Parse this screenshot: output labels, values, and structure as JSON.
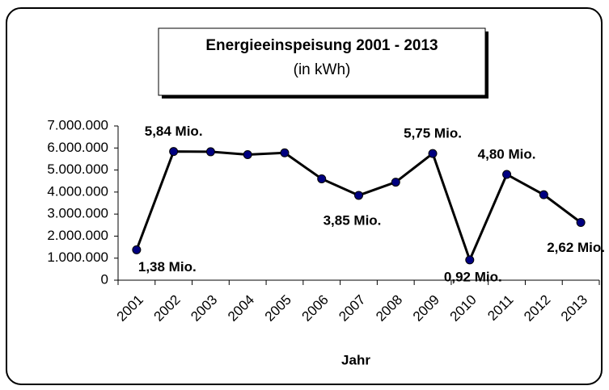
{
  "chart_data": {
    "type": "line",
    "title": "Energieeinspeisung 2001 - 2013",
    "subtitle": "(in kWh)",
    "x_label": "Jahr",
    "categories": [
      "2001",
      "2002",
      "2003",
      "2004",
      "2005",
      "2006",
      "2007",
      "2008",
      "2009",
      "2010",
      "2011",
      "2012",
      "2013"
    ],
    "series": [
      {
        "name": "Energieeinspeisung",
        "color": "#000080",
        "line_color": "#000000",
        "values": [
          1380000,
          5840000,
          5830000,
          5700000,
          5780000,
          4600000,
          3850000,
          4450000,
          5750000,
          920000,
          4800000,
          3880000,
          2620000
        ],
        "value_labels": [
          "1,38 Mio.",
          "5,84 Mio.",
          null,
          null,
          null,
          null,
          "3,85 Mio.",
          null,
          "5,75 Mio.",
          "0,92 Mio.",
          "4,80 Mio.",
          null,
          "2,62 Mio."
        ]
      }
    ],
    "ylim": [
      0,
      7000000
    ],
    "yticks": [
      0,
      {
        "value": 1000000,
        "label": "1.000.000"
      },
      {
        "value": 2000000,
        "label": "2.000.000"
      },
      {
        "value": 3000000,
        "label": "3.000.000"
      },
      {
        "value": 4000000,
        "label": "4.000.000"
      },
      {
        "value": 5000000,
        "label": "5.000.000"
      },
      {
        "value": 6000000,
        "label": "6.000.000"
      },
      {
        "value": 7000000,
        "label": "7.000.000"
      }
    ],
    "grid": false
  }
}
